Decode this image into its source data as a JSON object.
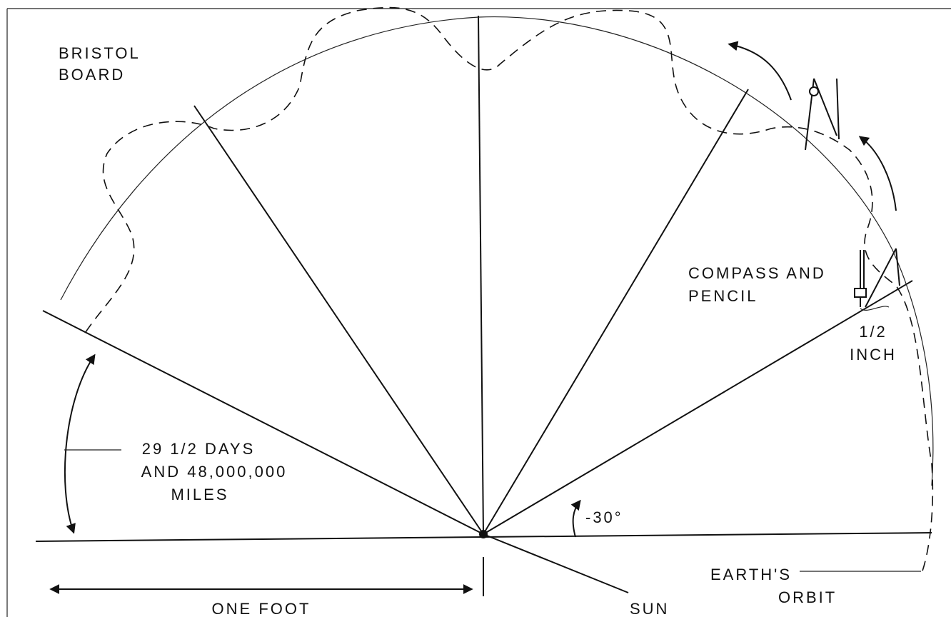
{
  "labels": [
    {
      "lines": [
        "BRISTOL",
        "BOARD"
      ]
    },
    {
      "lines": [
        "COMPASS AND",
        "PENCIL"
      ]
    },
    {
      "lines": [
        "1/2",
        "INCH"
      ]
    },
    {
      "lines": [
        "29 1/2 DAYS",
        "AND 48,000,000",
        "MILES"
      ]
    },
    {
      "lines": [
        "-30°"
      ]
    },
    {
      "lines": [
        "EARTH'S",
        "ORBIT"
      ]
    },
    {
      "lines": [
        "ONE FOOT"
      ]
    },
    {
      "lines": [
        "SUN"
      ]
    }
  ]
}
